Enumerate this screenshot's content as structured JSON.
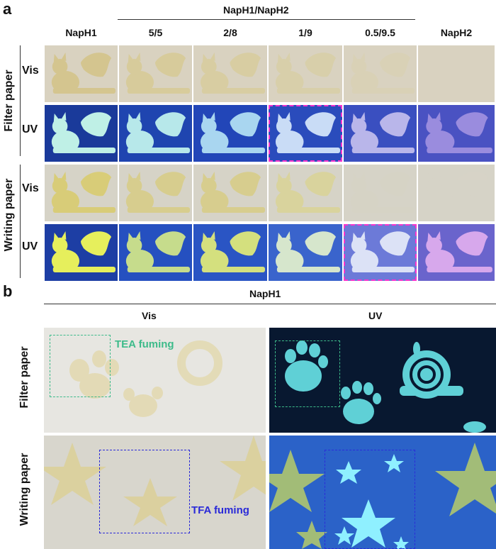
{
  "panel_a": {
    "letter": "a",
    "group_header": "NapH1/NapH2",
    "columns": [
      "NapH1",
      "5/5",
      "2/8",
      "1/9",
      "0.5/9.5",
      "NapH2"
    ],
    "row_groups": [
      {
        "label": "Filter paper",
        "rows": [
          "Vis",
          "UV"
        ]
      },
      {
        "label": "Writing paper",
        "rows": [
          "Vis",
          "UV"
        ]
      }
    ],
    "colors": {
      "filter_vis_bg": "#d9d2c0",
      "filter_vis_shape": [
        "#d4c48a",
        "#d7cb98",
        "#d8cd9f",
        "#d8cfa8",
        "#d9d1b5",
        "#d9d2c0"
      ],
      "filter_uv_bg": [
        "#1a3a9a",
        "#1f45b0",
        "#2246b8",
        "#2a4cbc",
        "#3a4fc0",
        "#4a52c2"
      ],
      "filter_uv_shape": [
        "#bff0e6",
        "#b7e8ea",
        "#a9d6f0",
        "#c9dcf6",
        "#b9b6ea",
        "#9a8cde"
      ],
      "writing_vis_bg": "#d6d3c7",
      "writing_vis_shape": [
        "#d9cc70",
        "#d8cd88",
        "#d8cd88",
        "#dad399",
        "#d7d3c5",
        "#d7d3c7"
      ],
      "writing_uv_bg": [
        "#1d3ea4",
        "#2550c0",
        "#2a55c4",
        "#3a64cc",
        "#6c7ad8",
        "#6a64cc"
      ],
      "writing_uv_shape": [
        "#e6ef5c",
        "#c6dc8c",
        "#d4e07e",
        "#d6e6cc",
        "#dce2f6",
        "#d7a8ec"
      ],
      "highlight": "#ff33cc"
    },
    "highlighted": [
      {
        "row": 1,
        "col": 3
      },
      {
        "row": 3,
        "col": 4
      }
    ]
  },
  "panel_b": {
    "letter": "b",
    "header": "NapH1",
    "columns": [
      "Vis",
      "UV"
    ],
    "row_labels": [
      "Filter paper",
      "Writing paper"
    ],
    "annotations": {
      "tea": "TEA fuming",
      "tfa": "TFA fuming"
    },
    "colors": {
      "tea": "#3dbb8a",
      "tfa": "#2a2ad8",
      "filter_vis_bg": "#e7e6e1",
      "filter_uv_bg": "#081830",
      "filter_uv_shape": "#5fd0d6",
      "writing_vis_bg": "#d8d6cd",
      "writing_uv_bg": "#2b62c8",
      "writing_uv_star": "#b7cc6a",
      "writing_uv_star_bright": "#8ff0ff"
    }
  }
}
